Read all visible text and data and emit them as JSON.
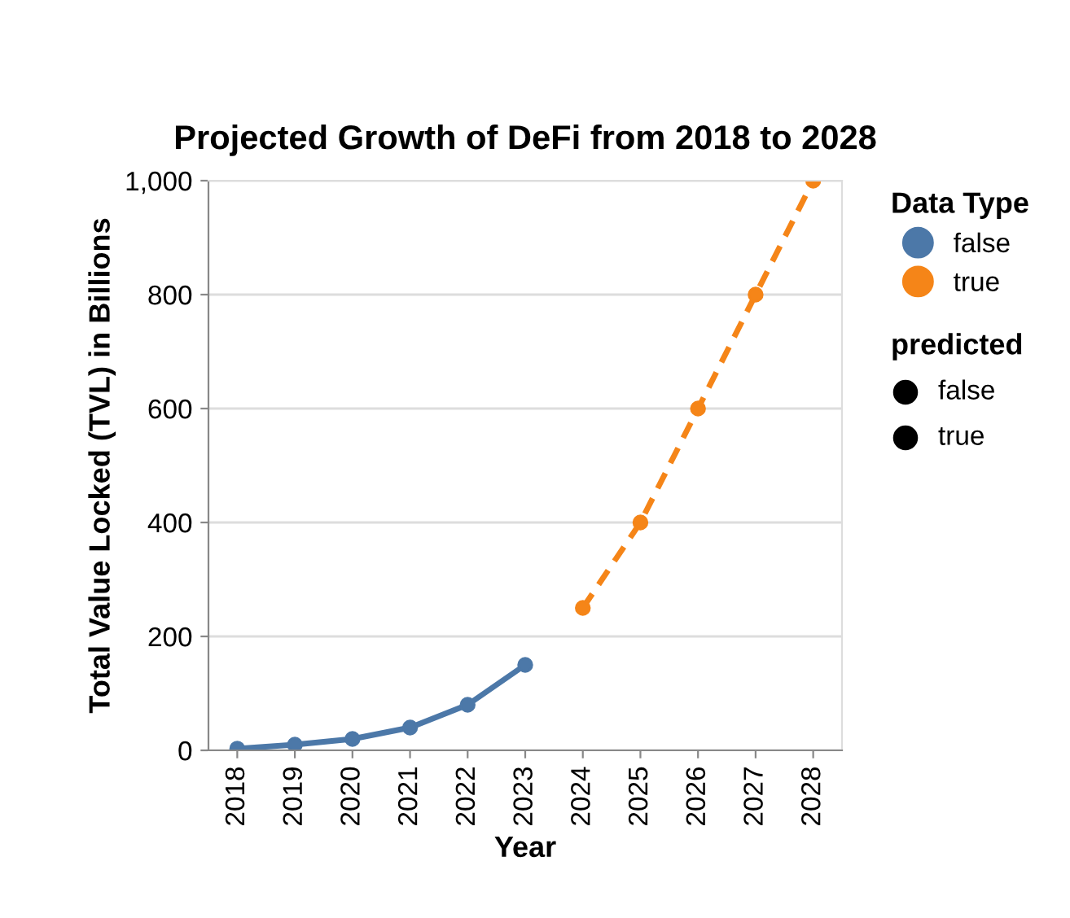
{
  "chart_data": {
    "type": "line",
    "title": "Projected Growth of DeFi from 2018 to 2028",
    "xlabel": "Year",
    "ylabel": "Total Value Locked (TVL) in Billions",
    "categories": [
      "2018",
      "2019",
      "2020",
      "2021",
      "2022",
      "2023",
      "2024",
      "2025",
      "2026",
      "2027",
      "2028"
    ],
    "series": [
      {
        "name": "false",
        "color": "#4c78a8",
        "line_style": "solid",
        "values": [
          3,
          10,
          20,
          40,
          80,
          150,
          null,
          null,
          null,
          null,
          null
        ]
      },
      {
        "name": "true",
        "color": "#f58518",
        "line_style": "dashed",
        "values": [
          null,
          null,
          null,
          null,
          null,
          null,
          250,
          400,
          600,
          800,
          1000
        ]
      }
    ],
    "ylim": [
      0,
      1000
    ],
    "yticks": [
      0,
      200,
      400,
      600,
      800,
      {
        "value": 1000,
        "label": "1,000"
      }
    ],
    "grid": "y",
    "legend": "right",
    "legend_title": "Data Type",
    "marker": "circle",
    "annotations": [
      "predicted",
      "false",
      "true"
    ]
  }
}
